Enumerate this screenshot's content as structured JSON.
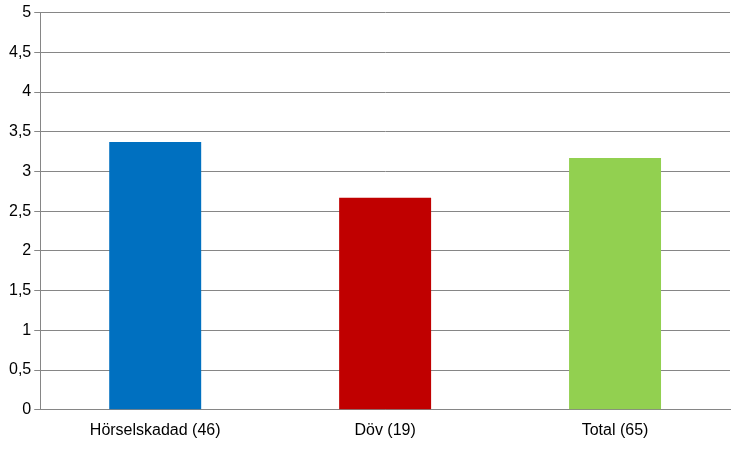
{
  "chart_data": {
    "type": "bar",
    "categories": [
      "Hörselskadad (46)",
      "Döv (19)",
      "Total (65)"
    ],
    "values": [
      3.37,
      2.67,
      3.17
    ],
    "colors": [
      "#0070c0",
      "#c00000",
      "#92d050"
    ],
    "ylim": [
      0,
      5
    ],
    "yticks": [
      0,
      {
        "value": 0.5,
        "label": "0,5"
      },
      1,
      {
        "value": 1.5,
        "label": "1,5"
      },
      2,
      {
        "value": 2.5,
        "label": "2,5"
      },
      3,
      {
        "value": 3.5,
        "label": "3,5"
      },
      4,
      {
        "value": 4.5,
        "label": "4,5"
      },
      5
    ],
    "grid": true
  }
}
